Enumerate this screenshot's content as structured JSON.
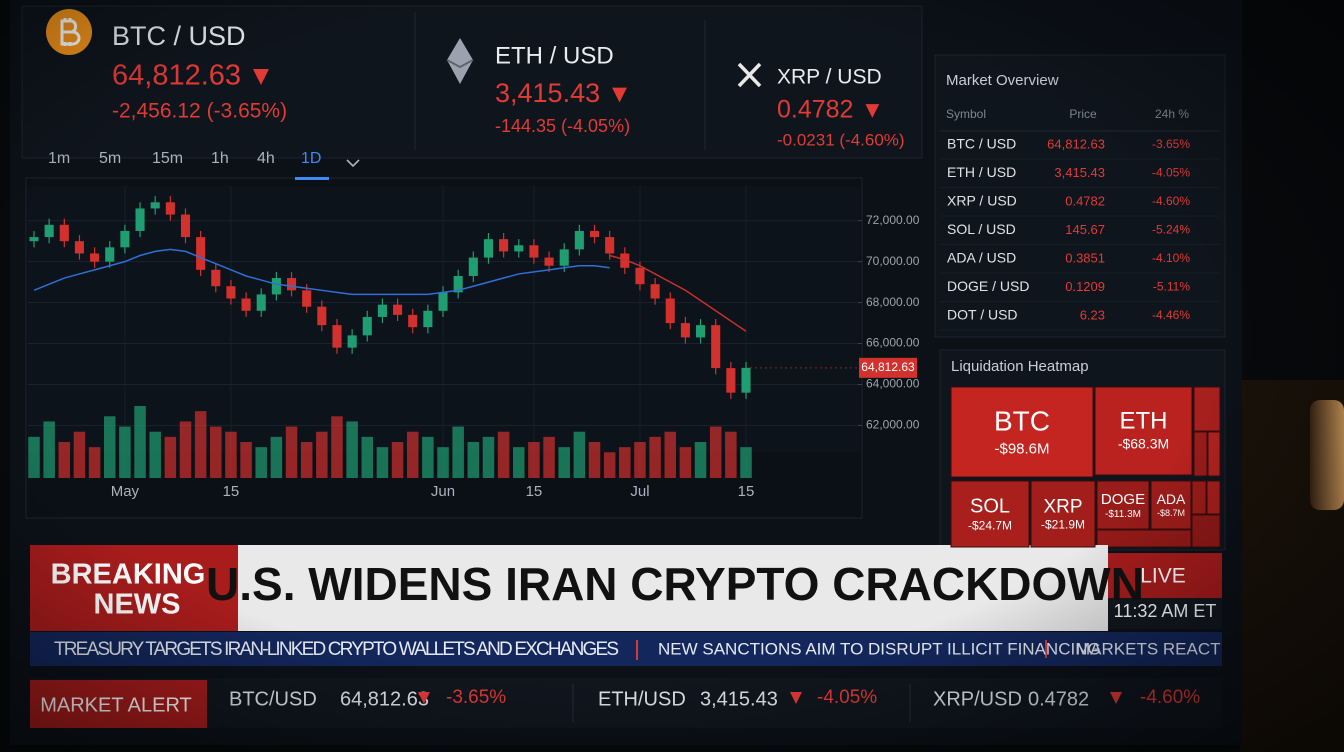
{
  "tickers": [
    {
      "pair": "BTC / USD",
      "price": "64,812.63",
      "change": "-2,456.12 (-3.65%)"
    },
    {
      "pair": "ETH / USD",
      "price": "3,415.43",
      "change": "-144.35 (-4.05%)"
    },
    {
      "pair": "XRP / USD",
      "price": "0.4782",
      "change": "-0.0231 (-4.60%)"
    }
  ],
  "timeframes": [
    "1m",
    "5m",
    "15m",
    "1h",
    "4h",
    "1D"
  ],
  "active_timeframe": "1D",
  "chart_data": {
    "type": "candlestick",
    "categories": [
      null,
      null,
      null,
      null,
      null,
      null,
      "May",
      null,
      null,
      null,
      null,
      null,
      null,
      "15",
      null,
      null,
      null,
      null,
      null,
      null,
      null,
      null,
      null,
      null,
      null,
      null,
      null,
      "Jun",
      null,
      null,
      null,
      null,
      null,
      "15",
      null,
      null,
      null,
      null,
      null,
      null,
      "Jul",
      null,
      null,
      null,
      null,
      null,
      null,
      "15"
    ],
    "open": [
      71000,
      71200,
      71800,
      71000,
      70400,
      70000,
      70700,
      71500,
      72600,
      72900,
      72300,
      71200,
      69600,
      68800,
      68200,
      67600,
      68400,
      69200,
      68600,
      67800,
      66900,
      65800,
      66400,
      67300,
      67900,
      67400,
      66800,
      67600,
      68500,
      69300,
      70200,
      71100,
      70500,
      70800,
      70200,
      69800,
      70600,
      71500,
      71200,
      70400,
      69700,
      68900,
      68200,
      67000,
      66300,
      66900,
      64800,
      63600
    ],
    "high": [
      71500,
      72100,
      72100,
      71300,
      70700,
      71000,
      71800,
      72900,
      73200,
      73200,
      72600,
      71500,
      69900,
      69100,
      68500,
      68700,
      69500,
      69500,
      68900,
      68100,
      67200,
      66700,
      67600,
      68200,
      68200,
      67700,
      67900,
      68800,
      69600,
      70500,
      71400,
      71400,
      71100,
      71100,
      70500,
      70900,
      71800,
      71800,
      71500,
      70700,
      70000,
      69200,
      68500,
      67300,
      67200,
      67200,
      65100,
      65100
    ],
    "low": [
      70700,
      70900,
      70700,
      70100,
      69700,
      69700,
      70400,
      71200,
      72300,
      72000,
      70900,
      69300,
      68500,
      67900,
      67300,
      67300,
      68100,
      68300,
      67500,
      66600,
      65500,
      65500,
      66100,
      67000,
      67100,
      66500,
      66500,
      67300,
      68200,
      69000,
      69900,
      70200,
      70200,
      69900,
      69500,
      69500,
      70300,
      70900,
      70100,
      69400,
      68600,
      67900,
      66700,
      66000,
      66000,
      64500,
      63300,
      63300
    ],
    "close": [
      71200,
      71800,
      71000,
      70400,
      70000,
      70700,
      71500,
      72600,
      72900,
      72300,
      71200,
      69600,
      68800,
      68200,
      67600,
      68400,
      69200,
      68600,
      67800,
      66900,
      65800,
      66400,
      67300,
      67900,
      67400,
      66800,
      67600,
      68500,
      69300,
      70200,
      71100,
      70500,
      70800,
      70200,
      69800,
      70600,
      71500,
      71200,
      70400,
      69700,
      68900,
      68200,
      67000,
      66300,
      66900,
      64800,
      63600,
      64812.63
    ],
    "volume": [
      40,
      55,
      35,
      45,
      30,
      60,
      50,
      70,
      45,
      40,
      55,
      65,
      50,
      45,
      35,
      30,
      40,
      50,
      35,
      45,
      60,
      55,
      40,
      30,
      35,
      45,
      40,
      30,
      50,
      35,
      40,
      45,
      30,
      35,
      40,
      30,
      45,
      35,
      25,
      30,
      35,
      40,
      45,
      30,
      35,
      50,
      45,
      30
    ],
    "ma_lines": [
      {
        "color": "#2f6fd6",
        "values": [
          68600,
          68900,
          69200,
          69400,
          69600,
          69800,
          70000,
          70300,
          70500,
          70600,
          70500,
          70200,
          69900,
          69600,
          69300,
          69100,
          68900,
          68800,
          68700,
          68600,
          68500,
          68400,
          68400,
          68400,
          68400,
          68400,
          68400,
          68500,
          68600,
          68800,
          69000,
          69200,
          69400,
          69500,
          69600,
          69700,
          69800,
          69800,
          69700,
          null,
          null,
          null,
          null,
          null,
          null,
          null,
          null,
          null
        ]
      },
      {
        "color": "#c8302c",
        "values": [
          null,
          null,
          null,
          null,
          null,
          null,
          null,
          null,
          null,
          null,
          null,
          null,
          null,
          null,
          null,
          null,
          null,
          null,
          null,
          null,
          null,
          null,
          null,
          null,
          null,
          null,
          null,
          null,
          null,
          null,
          null,
          null,
          null,
          null,
          null,
          null,
          null,
          null,
          70300,
          70100,
          69800,
          69400,
          69000,
          68600,
          68100,
          67600,
          67100,
          66600
        ]
      }
    ],
    "up_color": "#1f9e72",
    "down_color": "#d2312d",
    "ylim": [
      60800,
      73500
    ],
    "yticks": [
      {
        "value": 62000,
        "label": "62,000.00"
      },
      {
        "value": 64000,
        "label": "64,000.00"
      },
      {
        "value": 66000,
        "label": "66,000.00"
      },
      {
        "value": 68000,
        "label": "68,000.00"
      },
      {
        "value": 70000,
        "label": "70,000.00"
      },
      {
        "value": 72000,
        "label": "72,000.00"
      }
    ],
    "current_price": {
      "value": 64812.63,
      "label": "64,812.63"
    },
    "grid": true
  },
  "market_overview": {
    "title": "Market Overview",
    "headers": [
      "Symbol",
      "Price",
      "24h %"
    ],
    "rows": [
      [
        "BTC / USD",
        "64,812.63",
        "-3.65%"
      ],
      [
        "ETH / USD",
        "3,415.43",
        "-4.05%"
      ],
      [
        "XRP / USD",
        "0.4782",
        "-4.60%"
      ],
      [
        "SOL / USD",
        "145.67",
        "-5.24%"
      ],
      [
        "ADA / USD",
        "0.3851",
        "-4.10%"
      ],
      [
        "DOGE / USD",
        "0.1209",
        "-5.11%"
      ],
      [
        "DOT / USD",
        "6.23",
        "-4.46%"
      ]
    ]
  },
  "liquidation_heatmap": {
    "title": "Liquidation Heatmap",
    "tiles": [
      {
        "symbol": "BTC",
        "amount": "-$98.6M"
      },
      {
        "symbol": "ETH",
        "amount": "-$68.3M"
      },
      {
        "symbol": "SOL",
        "amount": "-$24.7M"
      },
      {
        "symbol": "XRP",
        "amount": "-$21.9M"
      },
      {
        "symbol": "DOGE",
        "amount": "-$11.3M"
      },
      {
        "symbol": "ADA",
        "amount": "-$8.7M"
      }
    ]
  },
  "breaking_news": {
    "label_lines": [
      "BREAKING",
      "NEWS"
    ],
    "headline": "U.S. WIDENS IRAN CRYPTO CRACKDOWN",
    "live": "LIVE",
    "time": "11:32 AM ET"
  },
  "ticker": [
    "TREASURY TARGETS IRAN-LINKED CRYPTO WALLETS AND EXCHANGES",
    "NEW SANCTIONS AIM TO DISRUPT ILLICIT FINANCING",
    "MARKETS REACT"
  ],
  "market_alert": {
    "label": "MARKET ALERT",
    "items": [
      {
        "pair": "BTC/USD",
        "price": "64,812.63",
        "change": "-3.65%"
      },
      {
        "pair": "ETH/USD",
        "price": "3,415.43",
        "change": "-4.05%"
      },
      {
        "pair": "XRP/USD",
        "price": "0.4782",
        "change": "-4.60%"
      }
    ]
  }
}
